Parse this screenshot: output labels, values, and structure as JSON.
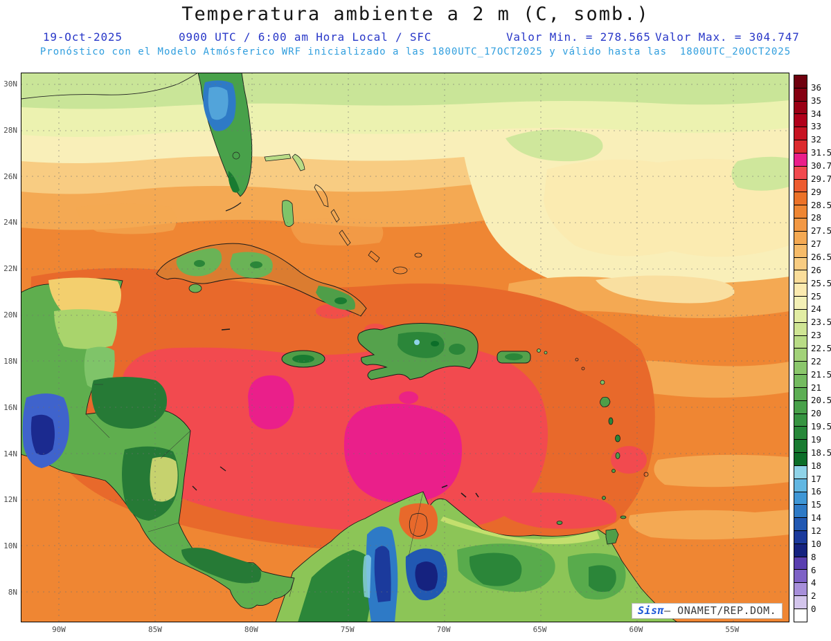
{
  "title": "Temperatura ambiente a 2 m (C, somb.)",
  "header": {
    "date": "19-Oct-2025",
    "run_info": "0900 UTC / 6:00 am Hora Local / SFC",
    "valor_min": "Valor Min. = 278.565",
    "valor_max": "Valor Max. = 304.747",
    "forecast_line": "Pronóstico con el Modelo Atmósferico WRF inicializado a las 1800UTC_17OCT2025 y válido hasta las  1800UTC_20OCT2025"
  },
  "axes": {
    "lat_labels": [
      "30N",
      "28N",
      "26N",
      "24N",
      "22N",
      "20N",
      "18N",
      "16N",
      "14N",
      "12N",
      "10N",
      "8N"
    ],
    "lon_labels": [
      "90W",
      "85W",
      "80W",
      "75W",
      "70W",
      "65W",
      "60W",
      "55W"
    ]
  },
  "colorbar": {
    "labels": [
      "36",
      "35",
      "34",
      "33",
      "32",
      "31.5",
      "30.7",
      "29.7",
      "29",
      "28.5",
      "28",
      "27.5",
      "27",
      "26.5",
      "26",
      "25.5",
      "25",
      "24",
      "23.5",
      "23",
      "22.5",
      "22",
      "21.5",
      "21",
      "20.5",
      "20",
      "19.5",
      "19",
      "18.5",
      "18",
      "17",
      "16",
      "15",
      "14",
      "12",
      "10",
      "8",
      "6",
      "4",
      "2",
      "0"
    ],
    "cells": [
      "#6f000e",
      "#850011",
      "#9a0015",
      "#b0001a",
      "#c71322",
      "#dc2a2e",
      "#ea1f8a",
      "#f24a4f",
      "#ed5c30",
      "#ec7228",
      "#ef8633",
      "#f29844",
      "#f4a953",
      "#f6bb69",
      "#f8cc82",
      "#fadd9a",
      "#fbeab0",
      "#f3f0b6",
      "#e2eda4",
      "#cfe594",
      "#b9dc86",
      "#a2d279",
      "#8bc76c",
      "#74bb60",
      "#5dae54",
      "#48a14a",
      "#369441",
      "#278839",
      "#197b31",
      "#0c6e29",
      "#8fd3e8",
      "#62b7e2",
      "#3f97d6",
      "#2e7ac6",
      "#2158b2",
      "#1b3a9c",
      "#15227f",
      "#5a3fb0",
      "#7e62c6",
      "#a78fda",
      "#d3c5ec",
      "#ffffff"
    ]
  },
  "attribution": {
    "brand": "Sisπ",
    "text": "– ONAMET/REP.DOM."
  },
  "chart_data": {
    "type": "heatmap",
    "title": "Temperatura ambiente a 2 m (C, somb.)",
    "units": "C",
    "valor_min": 278.565,
    "valor_max": 304.747,
    "lat_range": [
      "8N",
      "30N"
    ],
    "lon_range": [
      "90W",
      "55W"
    ],
    "scale_values": [
      36,
      35,
      34,
      33,
      32,
      31.5,
      30.7,
      29.7,
      29,
      28.5,
      28,
      27.5,
      27,
      26.5,
      26,
      25.5,
      25,
      24,
      23.5,
      23,
      22.5,
      22,
      21.5,
      21,
      20.5,
      20,
      19.5,
      19,
      18.5,
      18,
      17,
      16,
      15,
      14,
      12,
      10,
      8,
      6,
      4,
      2,
      0
    ],
    "grid": "dashed, every 2 deg lat / 5 deg lon",
    "legend_position": "right"
  }
}
